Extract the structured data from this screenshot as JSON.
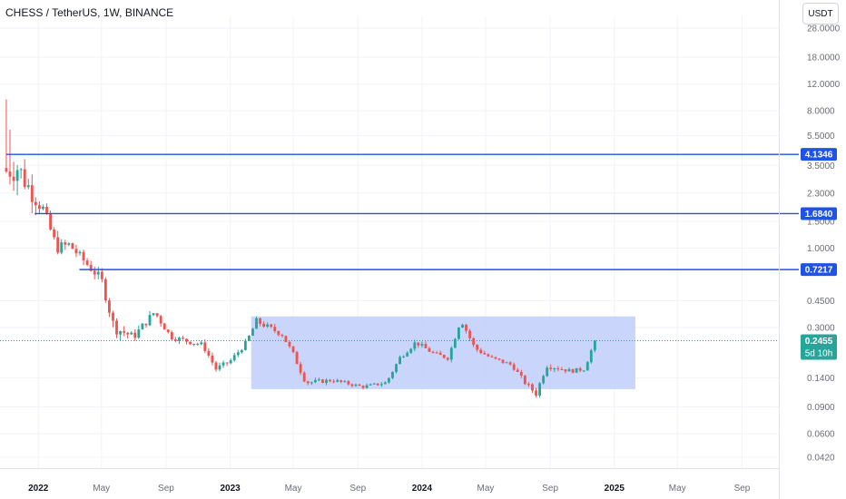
{
  "header": {
    "symbol_title": "CHESS / TetherUS, 1W, BINANCE",
    "currency_button": "USDT"
  },
  "chart_data": {
    "type": "candlestick",
    "title": "CHESS / TetherUS, 1W, BINANCE",
    "scale": "log",
    "ylim": [
      0.036,
      30
    ],
    "xlim": [
      "2021-10-20",
      "2025-11-10"
    ],
    "grid": true,
    "colors": {
      "up": "#26a69a",
      "down": "#ef5350",
      "level_line": "#1e53e5",
      "zone_fill": "#c3d0fb",
      "last_price": "#26a69a"
    },
    "y_ticks": [
      {
        "value": 28,
        "label": "28.0000"
      },
      {
        "value": 18,
        "label": "18.0000"
      },
      {
        "value": 12,
        "label": "12.0000"
      },
      {
        "value": 8,
        "label": "8.0000"
      },
      {
        "value": 5.5,
        "label": "5.5000"
      },
      {
        "value": 3.5,
        "label": "3.5000"
      },
      {
        "value": 2.3,
        "label": "2.3000"
      },
      {
        "value": 1.5,
        "label": "1.5000"
      },
      {
        "value": 1.0,
        "label": "1.0000"
      },
      {
        "value": 0.45,
        "label": "0.4500"
      },
      {
        "value": 0.3,
        "label": "0.3000"
      },
      {
        "value": 0.14,
        "label": "0.1400"
      },
      {
        "value": 0.09,
        "label": "0.0900"
      },
      {
        "value": 0.06,
        "label": "0.0600"
      },
      {
        "value": 0.042,
        "label": "0.0420"
      }
    ],
    "x_ticks": [
      {
        "date": "2022-01-01",
        "label": "2022",
        "bold": true
      },
      {
        "date": "2022-05-01",
        "label": "May",
        "bold": false
      },
      {
        "date": "2022-09-01",
        "label": "Sep",
        "bold": false
      },
      {
        "date": "2023-01-01",
        "label": "2023",
        "bold": true
      },
      {
        "date": "2023-05-01",
        "label": "May",
        "bold": false
      },
      {
        "date": "2023-09-01",
        "label": "Sep",
        "bold": false
      },
      {
        "date": "2024-01-01",
        "label": "2024",
        "bold": true
      },
      {
        "date": "2024-05-01",
        "label": "May",
        "bold": false
      },
      {
        "date": "2024-09-01",
        "label": "Sep",
        "bold": false
      },
      {
        "date": "2025-01-01",
        "label": "2025",
        "bold": true
      },
      {
        "date": "2025-05-01",
        "label": "May",
        "bold": false
      },
      {
        "date": "2025-09-01",
        "label": "Sep",
        "bold": false
      }
    ],
    "level_lines": [
      {
        "value": 4.1346,
        "label": "4.1346",
        "from": "2021-11-01"
      },
      {
        "value": 1.684,
        "label": "1.6840",
        "from": "2021-12-25"
      },
      {
        "value": 0.7217,
        "label": "0.7217",
        "from": "2022-03-20"
      }
    ],
    "range_zone": {
      "from": "2023-02-10",
      "to": "2025-02-10",
      "low": 0.118,
      "high": 0.355
    },
    "last_price": {
      "value": 0.2455,
      "label": "0.2455",
      "countdown": "5d 10h"
    },
    "anchors": [
      {
        "date": "2021-11-01",
        "price": 3.2,
        "vol": 0.3
      },
      {
        "date": "2021-11-22",
        "price": 3.4,
        "vol": 0.4
      },
      {
        "date": "2021-12-20",
        "price": 2.3,
        "vol": 0.25
      },
      {
        "date": "2022-01-10",
        "price": 1.8,
        "vol": 0.18
      },
      {
        "date": "2022-02-05",
        "price": 1.0,
        "vol": 0.15
      },
      {
        "date": "2022-03-01",
        "price": 1.05,
        "vol": 0.14
      },
      {
        "date": "2022-03-25",
        "price": 0.85,
        "vol": 0.12
      },
      {
        "date": "2022-05-01",
        "price": 0.62,
        "vol": 0.12
      },
      {
        "date": "2022-05-25",
        "price": 0.3,
        "vol": 0.15
      },
      {
        "date": "2022-07-01",
        "price": 0.26,
        "vol": 0.1
      },
      {
        "date": "2022-08-10",
        "price": 0.38,
        "vol": 0.1
      },
      {
        "date": "2022-09-10",
        "price": 0.26,
        "vol": 0.07
      },
      {
        "date": "2022-11-10",
        "price": 0.23,
        "vol": 0.07
      },
      {
        "date": "2022-12-05",
        "price": 0.16,
        "vol": 0.07
      },
      {
        "date": "2023-01-01",
        "price": 0.18,
        "vol": 0.06
      },
      {
        "date": "2023-02-01",
        "price": 0.24,
        "vol": 0.07
      },
      {
        "date": "2023-02-20",
        "price": 0.33,
        "vol": 0.08
      },
      {
        "date": "2023-04-10",
        "price": 0.27,
        "vol": 0.07
      },
      {
        "date": "2023-05-01",
        "price": 0.2,
        "vol": 0.07
      },
      {
        "date": "2023-05-25",
        "price": 0.13,
        "vol": 0.06
      },
      {
        "date": "2023-07-15",
        "price": 0.135,
        "vol": 0.05
      },
      {
        "date": "2023-09-10",
        "price": 0.122,
        "vol": 0.04
      },
      {
        "date": "2023-10-25",
        "price": 0.13,
        "vol": 0.05
      },
      {
        "date": "2023-11-20",
        "price": 0.19,
        "vol": 0.06
      },
      {
        "date": "2023-12-20",
        "price": 0.24,
        "vol": 0.06
      },
      {
        "date": "2024-01-25",
        "price": 0.2,
        "vol": 0.06
      },
      {
        "date": "2024-02-20",
        "price": 0.19,
        "vol": 0.06
      },
      {
        "date": "2024-03-15",
        "price": 0.34,
        "vol": 0.07
      },
      {
        "date": "2024-04-10",
        "price": 0.22,
        "vol": 0.07
      },
      {
        "date": "2024-05-10",
        "price": 0.19,
        "vol": 0.05
      },
      {
        "date": "2024-06-20",
        "price": 0.17,
        "vol": 0.05
      },
      {
        "date": "2024-07-15",
        "price": 0.13,
        "vol": 0.06
      },
      {
        "date": "2024-08-05",
        "price": 0.11,
        "vol": 0.07
      },
      {
        "date": "2024-08-25",
        "price": 0.17,
        "vol": 0.08
      },
      {
        "date": "2024-10-10",
        "price": 0.155,
        "vol": 0.05
      },
      {
        "date": "2024-11-05",
        "price": 0.16,
        "vol": 0.05
      },
      {
        "date": "2024-11-25",
        "price": 0.2455,
        "vol": 0.05
      }
    ]
  }
}
